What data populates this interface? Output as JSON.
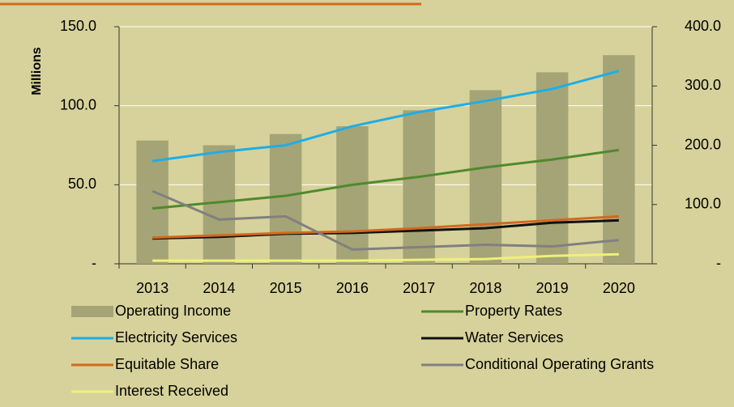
{
  "chart_data": {
    "type": "bar-line",
    "y_label": "Millions",
    "categories": [
      "2013",
      "2014",
      "2015",
      "2016",
      "2017",
      "2018",
      "2019",
      "2020"
    ],
    "series": [
      {
        "name": "Operating Income",
        "type": "bar",
        "axis": "y2",
        "color": "#a5a476",
        "values": [
          208,
          200,
          219,
          232,
          259,
          293,
          323,
          352
        ]
      },
      {
        "name": "Property Rates",
        "type": "line",
        "color": "#4e8a2e",
        "values": [
          35,
          39,
          43,
          50,
          55,
          61,
          66,
          72
        ]
      },
      {
        "name": "Electricity Services",
        "type": "line",
        "color": "#1eaee6",
        "values": [
          65,
          70.7,
          75,
          87,
          96,
          103,
          110.6,
          122
        ]
      },
      {
        "name": "Water Services",
        "type": "line",
        "color": "#111111",
        "values": [
          16,
          17,
          19,
          19.5,
          21,
          22.5,
          26,
          27.5
        ]
      },
      {
        "name": "Equitable Share",
        "type": "line",
        "color": "#d2691e",
        "values": [
          16.5,
          18,
          19.5,
          20.5,
          22.5,
          25,
          27.5,
          30
        ]
      },
      {
        "name": "Conditional Operating Grants",
        "type": "line",
        "color": "#808080",
        "values": [
          46,
          28,
          30,
          9,
          10.5,
          12,
          11,
          15
        ]
      },
      {
        "name": "Interest Received",
        "type": "line",
        "color": "#f0f07a",
        "values": [
          2,
          2,
          2,
          2,
          2.5,
          3,
          5,
          6
        ]
      }
    ],
    "ylim": [
      0,
      150
    ],
    "yticks": [
      {
        "value": 0,
        "label": "-"
      },
      {
        "value": 50,
        "label": "50.0"
      },
      {
        "value": 100,
        "label": "100.0"
      },
      {
        "value": 150,
        "label": "150.0"
      }
    ],
    "y2lim": [
      0,
      400
    ],
    "y2ticks": [
      {
        "value": 0,
        "label": "-"
      },
      {
        "value": 100,
        "label": "100.0"
      },
      {
        "value": 200,
        "label": "200.0"
      },
      {
        "value": 300,
        "label": "300.0"
      },
      {
        "value": 400,
        "label": "400.0"
      }
    ],
    "grid": true
  }
}
